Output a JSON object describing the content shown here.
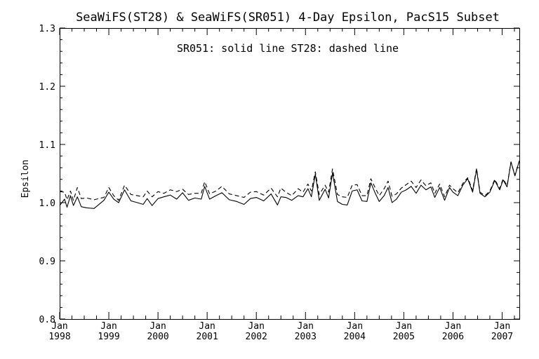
{
  "chart_data": {
    "type": "line",
    "title": "SeaWiFS(ST28) & SeaWiFS(SR051) 4-Day Epsilon, PacS15 Subset",
    "annotation": "SR051: solid line   ST28: dashed line",
    "xlabel": "",
    "ylabel": "Epsilon",
    "x_unit": "year",
    "xlim": [
      1998.0,
      2007.35
    ],
    "ylim": [
      0.8,
      1.3
    ],
    "x_ticks": [
      1998,
      1999,
      2000,
      2001,
      2002,
      2003,
      2004,
      2005,
      2006,
      2007
    ],
    "x_tick_labels": [
      {
        "month": "Jan",
        "year": "1998"
      },
      {
        "month": "Jan",
        "year": "1999"
      },
      {
        "month": "Jan",
        "year": "2000"
      },
      {
        "month": "Jan",
        "year": "2001"
      },
      {
        "month": "Jan",
        "year": "2002"
      },
      {
        "month": "Jan",
        "year": "2003"
      },
      {
        "month": "Jan",
        "year": "2004"
      },
      {
        "month": "Jan",
        "year": "2005"
      },
      {
        "month": "Jan",
        "year": "2006"
      },
      {
        "month": "Jan",
        "year": "2007"
      }
    ],
    "y_ticks": [
      0.8,
      0.9,
      1.0,
      1.1,
      1.2,
      1.3
    ],
    "y_tick_labels": [
      "0.8",
      "0.9",
      "1.0",
      "1.1",
      "1.2",
      "1.3"
    ],
    "x": [
      1998.0,
      1998.1,
      1998.15,
      1998.22,
      1998.28,
      1998.36,
      1998.44,
      1998.55,
      1998.7,
      1998.9,
      1999.0,
      1999.1,
      1999.2,
      1999.32,
      1999.45,
      1999.58,
      1999.7,
      1999.78,
      1999.88,
      2000.0,
      2000.12,
      2000.25,
      2000.38,
      2000.5,
      2000.62,
      2000.75,
      2000.88,
      2000.95,
      2001.05,
      2001.18,
      2001.3,
      2001.45,
      2001.6,
      2001.75,
      2001.88,
      2002.0,
      2002.15,
      2002.3,
      2002.43,
      2002.5,
      2002.6,
      2002.72,
      2002.85,
      2002.95,
      2003.05,
      2003.12,
      2003.2,
      2003.28,
      2003.4,
      2003.47,
      2003.55,
      2003.65,
      2003.75,
      2003.85,
      2003.95,
      2004.05,
      2004.15,
      2004.25,
      2004.33,
      2004.42,
      2004.5,
      2004.6,
      2004.68,
      2004.76,
      2004.85,
      2004.95,
      2005.05,
      2005.15,
      2005.25,
      2005.35,
      2005.45,
      2005.55,
      2005.63,
      2005.73,
      2005.83,
      2005.93,
      2006.0,
      2006.1,
      2006.2,
      2006.3,
      2006.4,
      2006.48,
      2006.55,
      2006.65,
      2006.75,
      2006.85,
      2006.95,
      2007.02,
      2007.1,
      2007.18,
      2007.26,
      2007.35
    ],
    "series": [
      {
        "name": "SR051",
        "style": "solid",
        "color": "#000000",
        "values": [
          0.995,
          1.006,
          0.992,
          1.012,
          0.995,
          1.01,
          0.993,
          0.991,
          0.99,
          1.004,
          1.018,
          1.006,
          1.0,
          1.022,
          1.003,
          1.0,
          0.997,
          1.007,
          0.995,
          1.007,
          1.01,
          1.013,
          1.006,
          1.017,
          1.004,
          1.008,
          1.006,
          1.028,
          1.006,
          1.012,
          1.017,
          1.005,
          1.002,
          0.997,
          1.007,
          1.009,
          1.003,
          1.015,
          0.996,
          1.01,
          1.009,
          1.004,
          1.012,
          1.01,
          1.024,
          1.01,
          1.049,
          1.004,
          1.023,
          1.008,
          1.051,
          1.002,
          0.997,
          0.996,
          1.02,
          1.022,
          1.003,
          1.002,
          1.034,
          1.016,
          1.002,
          1.012,
          1.026,
          1.0,
          1.006,
          1.018,
          1.022,
          1.028,
          1.016,
          1.03,
          1.022,
          1.027,
          1.009,
          1.026,
          1.004,
          1.026,
          1.018,
          1.012,
          1.03,
          1.041,
          1.018,
          1.057,
          1.016,
          1.01,
          1.018,
          1.038,
          1.022,
          1.039,
          1.027,
          1.07,
          1.046,
          1.072
        ]
      },
      {
        "name": "ST28",
        "style": "dashed",
        "color": "#000000",
        "values": [
          1.019,
          1.018,
          1.005,
          1.02,
          1.004,
          1.026,
          1.007,
          1.008,
          1.005,
          1.009,
          1.026,
          1.012,
          1.004,
          1.03,
          1.014,
          1.012,
          1.01,
          1.02,
          1.01,
          1.019,
          1.016,
          1.022,
          1.019,
          1.023,
          1.014,
          1.016,
          1.016,
          1.036,
          1.015,
          1.02,
          1.028,
          1.015,
          1.012,
          1.009,
          1.018,
          1.019,
          1.013,
          1.025,
          1.01,
          1.025,
          1.018,
          1.012,
          1.024,
          1.018,
          1.032,
          1.02,
          1.053,
          1.014,
          1.03,
          1.018,
          1.058,
          1.014,
          1.01,
          1.009,
          1.03,
          1.031,
          1.012,
          1.012,
          1.041,
          1.025,
          1.012,
          1.024,
          1.037,
          1.011,
          1.015,
          1.025,
          1.031,
          1.037,
          1.026,
          1.039,
          1.029,
          1.034,
          1.016,
          1.032,
          1.01,
          1.03,
          1.024,
          1.017,
          1.033,
          1.043,
          1.021,
          1.059,
          1.018,
          1.012,
          1.02,
          1.04,
          1.024,
          1.041,
          1.029,
          1.07,
          1.047,
          1.072
        ]
      }
    ],
    "grid": false,
    "legend": "top-center"
  }
}
